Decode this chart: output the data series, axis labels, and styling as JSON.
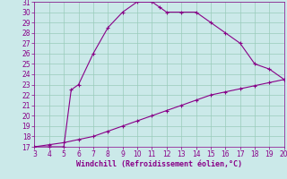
{
  "xlabel": "Windchill (Refroidissement éolien,°C)",
  "bg_color": "#cbe9e9",
  "line_color": "#880088",
  "grid_color": "#99ccbb",
  "upper_curve_x": [
    3,
    4,
    5,
    5.5,
    6,
    7,
    8,
    9,
    10,
    11,
    11.5,
    12,
    13,
    14,
    15,
    16,
    17,
    18,
    19,
    20
  ],
  "upper_curve_y": [
    17,
    17,
    17,
    22.5,
    23,
    26,
    28.5,
    30,
    31,
    31,
    30.5,
    30,
    30,
    30,
    29,
    28,
    27,
    25,
    24.5,
    23.5
  ],
  "lower_curve_x": [
    3,
    4,
    5,
    6,
    7,
    8,
    9,
    10,
    11,
    12,
    13,
    14,
    15,
    16,
    17,
    18,
    19,
    20
  ],
  "lower_curve_y": [
    17,
    17.2,
    17.4,
    17.7,
    18.0,
    18.5,
    19.0,
    19.5,
    20.0,
    20.5,
    21.0,
    21.5,
    22.0,
    22.3,
    22.6,
    22.9,
    23.2,
    23.5
  ],
  "xlim": [
    3,
    20
  ],
  "ylim": [
    17,
    31
  ],
  "xticks": [
    3,
    4,
    5,
    6,
    7,
    8,
    9,
    10,
    11,
    12,
    13,
    14,
    15,
    16,
    17,
    18,
    19,
    20
  ],
  "yticks": [
    17,
    18,
    19,
    20,
    21,
    22,
    23,
    24,
    25,
    26,
    27,
    28,
    29,
    30,
    31
  ],
  "tick_fontsize": 5.5,
  "xlabel_fontsize": 6.0
}
